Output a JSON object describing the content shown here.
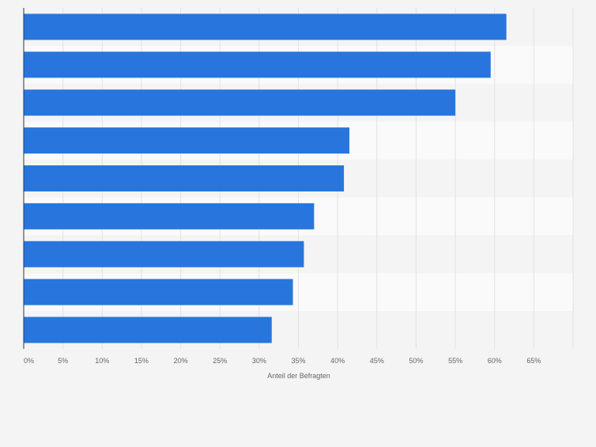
{
  "chart_data": {
    "type": "bar",
    "orientation": "horizontal",
    "title": "",
    "xlabel": "Anteil der Befragten",
    "ylabel": "",
    "categories": [
      "",
      "",
      "",
      "",
      "",
      "",
      "",
      "",
      ""
    ],
    "values": [
      61.5,
      59.5,
      55.0,
      41.5,
      40.8,
      37.0,
      35.7,
      34.3,
      31.6
    ],
    "xlim": [
      0,
      70
    ],
    "xticks": [
      0,
      5,
      10,
      15,
      20,
      25,
      30,
      35,
      40,
      45,
      50,
      55,
      60,
      65
    ],
    "xtick_labels": [
      "0%",
      "5%",
      "10%",
      "15%",
      "20%",
      "25%",
      "30%",
      "35%",
      "40%",
      "45%",
      "50%",
      "55%",
      "60%",
      "65%"
    ],
    "grid": true,
    "legend": "none",
    "bar_color": "#2876dd",
    "plot_band_colors": [
      "#f4f4f4",
      "#fafafa"
    ],
    "gridline_color": "#e2e2e2",
    "axis_color": "#333333",
    "tick_label_color": "#666666"
  }
}
